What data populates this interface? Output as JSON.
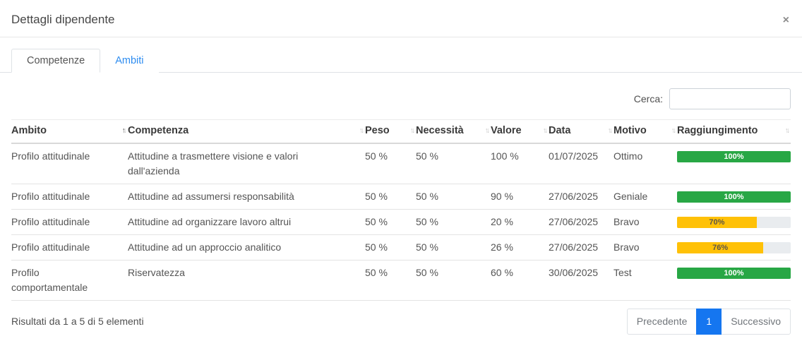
{
  "modal": {
    "title": "Dettagli dipendente",
    "close_glyph": "×"
  },
  "tabs": [
    {
      "label": "Competenze",
      "active": true
    },
    {
      "label": "Ambiti",
      "active": false
    }
  ],
  "search": {
    "label": "Cerca:",
    "value": ""
  },
  "table": {
    "columns": [
      {
        "label": "Ambito",
        "sort": "asc"
      },
      {
        "label": "Competenza",
        "sort": "none"
      },
      {
        "label": "Peso",
        "sort": "none"
      },
      {
        "label": "Necessità",
        "sort": "none"
      },
      {
        "label": "Valore",
        "sort": "none"
      },
      {
        "label": "Data",
        "sort": "none"
      },
      {
        "label": "Motivo",
        "sort": "none"
      },
      {
        "label": "Raggiungimento",
        "sort": "none"
      }
    ],
    "rows": [
      {
        "ambito": "Profilo attitudinale",
        "competenza": "Attitudine a trasmettere visione e valori dall'azienda",
        "peso": "50 %",
        "necessita": "50 %",
        "valore": "100 %",
        "data": "01/07/2025",
        "motivo": "Ottimo",
        "raggiungimento": {
          "percent": 100,
          "label": "100%",
          "color": "green"
        }
      },
      {
        "ambito": "Profilo attitudinale",
        "competenza": "Attitudine ad assumersi responsabilità",
        "peso": "50 %",
        "necessita": "50 %",
        "valore": "90 %",
        "data": "27/06/2025",
        "motivo": "Geniale",
        "raggiungimento": {
          "percent": 100,
          "label": "100%",
          "color": "green"
        }
      },
      {
        "ambito": "Profilo attitudinale",
        "competenza": "Attitudine ad organizzare lavoro altrui",
        "peso": "50 %",
        "necessita": "50 %",
        "valore": "20 %",
        "data": "27/06/2025",
        "motivo": "Bravo",
        "raggiungimento": {
          "percent": 70,
          "label": "70%",
          "color": "yellow"
        }
      },
      {
        "ambito": "Profilo attitudinale",
        "competenza": "Attitudine ad un approccio analitico",
        "peso": "50 %",
        "necessita": "50 %",
        "valore": "26 %",
        "data": "27/06/2025",
        "motivo": "Bravo",
        "raggiungimento": {
          "percent": 76,
          "label": "76%",
          "color": "yellow"
        }
      },
      {
        "ambito": "Profilo comportamentale",
        "competenza": "Riservatezza",
        "peso": "50 %",
        "necessita": "50 %",
        "valore": "60 %",
        "data": "30/06/2025",
        "motivo": "Test",
        "raggiungimento": {
          "percent": 100,
          "label": "100%",
          "color": "green"
        }
      }
    ]
  },
  "footer": {
    "results_text": "Risultati da 1 a 5 di 5 elementi",
    "pagination": {
      "previous_label": "Precedente",
      "current_page": "1",
      "next_label": "Successivo"
    }
  },
  "colors": {
    "bar_green": "#28a745",
    "bar_yellow": "#ffc107",
    "bar_track": "#e9ecef",
    "accent_blue": "#1576f0",
    "link_blue": "#2d8cf0"
  }
}
